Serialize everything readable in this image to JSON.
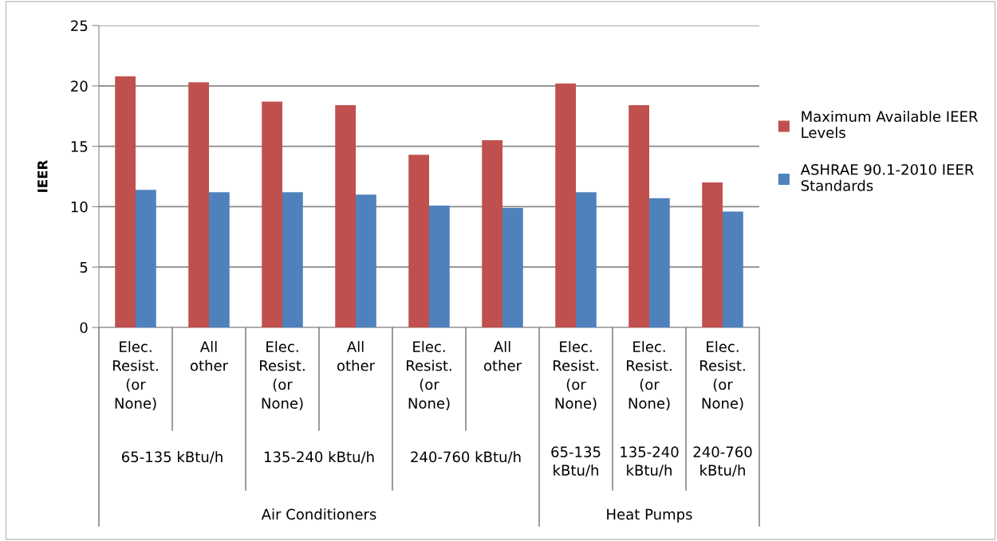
{
  "chart_data": {
    "type": "bar",
    "ylabel": "IEER",
    "categories": [
      "Elec. Resist. (or None)",
      "All other",
      "Elec. Resist. (or None)",
      "All other",
      "Elec. Resist. (or None)",
      "All other",
      "Elec. Resist. (or None)",
      "Elec. Resist. (or None)",
      "Elec. Resist. (or None)"
    ],
    "series": [
      {
        "name": "Maximum Available IEER Levels",
        "color": "#c0504d",
        "values": [
          20.8,
          20.3,
          18.7,
          18.4,
          14.3,
          15.5,
          20.2,
          18.4,
          12.0
        ]
      },
      {
        "name": "ASHRAE 90.1-2010 IEER Standards",
        "color": "#4f81bd",
        "values": [
          11.4,
          11.2,
          11.2,
          11.0,
          10.1,
          9.9,
          11.2,
          10.7,
          9.6
        ]
      }
    ],
    "annotations": [
      "65-135 kBtu/h",
      "135-240 kBtu/h",
      "240-760 kBtu/h",
      "65-135 kBtu/h",
      "135-240 kBtu/h",
      "240-760 kBtu/h",
      "Air Conditioners",
      "Heat Pumps"
    ],
    "ylim": [
      0,
      25
    ],
    "yticks": [
      0,
      5,
      10,
      15,
      20,
      25
    ],
    "grid": "y",
    "legend": "right"
  }
}
